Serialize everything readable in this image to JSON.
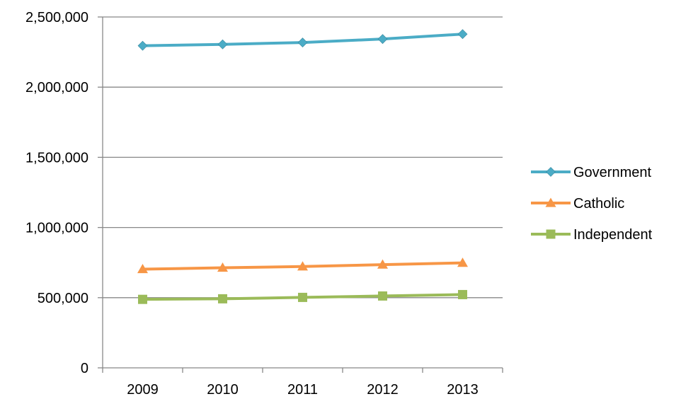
{
  "chart_data": {
    "type": "line",
    "title": "",
    "xlabel": "",
    "ylabel": "",
    "categories": [
      "2009",
      "2010",
      "2011",
      "2012",
      "2013"
    ],
    "ylim": [
      0,
      2500000
    ],
    "y_ticks": [
      0,
      500000,
      1000000,
      1500000,
      2000000,
      2500000
    ],
    "y_tick_labels": [
      "0",
      "500,000",
      "1,000,000",
      "1,500,000",
      "2,000,000",
      "2,500,000"
    ],
    "grid": "horizontal",
    "legend_position": "right",
    "series": [
      {
        "name": "Government",
        "values": [
          2295000,
          2305000,
          2318000,
          2343000,
          2378000
        ],
        "color": "#4BACC6",
        "marker": "diamond"
      },
      {
        "name": "Catholic",
        "values": [
          703000,
          713000,
          722000,
          735000,
          748000
        ],
        "color": "#F79646",
        "marker": "triangle"
      },
      {
        "name": "Independent",
        "values": [
          488000,
          492000,
          502000,
          512000,
          522000
        ],
        "color": "#9BBB59",
        "marker": "square"
      }
    ]
  }
}
